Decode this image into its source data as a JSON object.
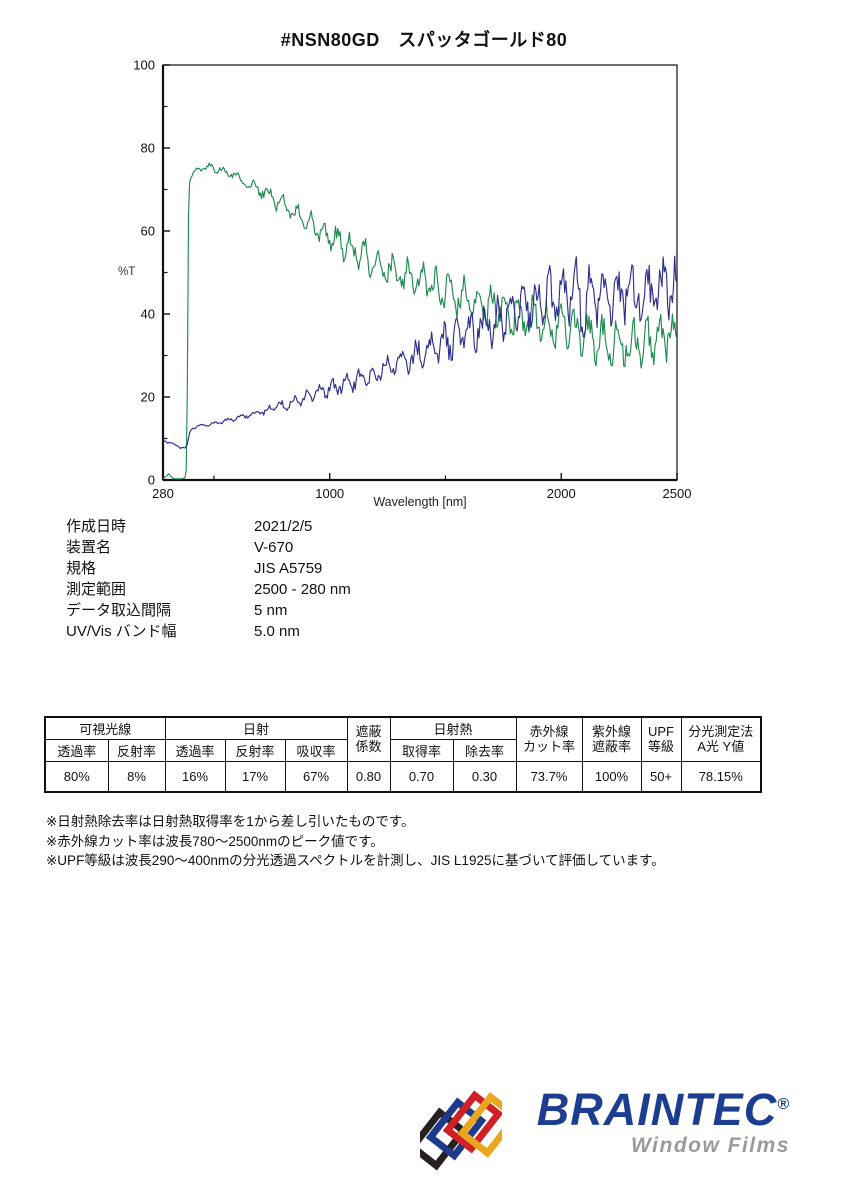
{
  "page": {
    "title": "#NSN80GD　スパッタゴールド80"
  },
  "chart_data": {
    "type": "line",
    "xlabel": "Wavelength [nm]",
    "ylabel": "%T",
    "xlim": [
      280,
      2500
    ],
    "ylim": [
      0,
      100
    ],
    "x_ticks_major": [
      280,
      1000,
      2000,
      2500
    ],
    "x_ticks_minor": [
      500,
      1500
    ],
    "y_ticks_major": [
      0,
      20,
      40,
      60,
      80,
      100
    ],
    "y_ticks_minor": [
      10,
      30,
      50,
      70,
      90
    ],
    "step_nm": 5,
    "grid": false,
    "legend": "none",
    "series": [
      {
        "name": "transmittance-spectrum",
        "color": "#1f8b50",
        "seed": 7,
        "trend": [
          [
            280,
            0.3
          ],
          [
            295,
            1.0
          ],
          [
            305,
            1.5
          ],
          [
            315,
            0.8
          ],
          [
            330,
            0.3
          ],
          [
            360,
            0.3
          ],
          [
            378,
            0.6
          ],
          [
            383,
            5
          ],
          [
            386,
            30
          ],
          [
            389,
            60
          ],
          [
            392,
            71
          ],
          [
            400,
            73
          ],
          [
            420,
            74.5
          ],
          [
            450,
            75.3
          ],
          [
            480,
            75.5
          ],
          [
            510,
            75
          ],
          [
            540,
            74.5
          ],
          [
            570,
            74
          ],
          [
            600,
            73
          ],
          [
            650,
            71.5
          ],
          [
            700,
            70
          ],
          [
            750,
            68
          ],
          [
            800,
            66
          ],
          [
            850,
            64
          ],
          [
            900,
            62
          ],
          [
            950,
            60
          ],
          [
            1000,
            58.5
          ],
          [
            1050,
            57
          ],
          [
            1100,
            55.5
          ],
          [
            1150,
            54
          ],
          [
            1200,
            52.5
          ],
          [
            1250,
            51
          ],
          [
            1300,
            50
          ],
          [
            1350,
            48.5
          ],
          [
            1400,
            47.5
          ],
          [
            1450,
            46.5
          ],
          [
            1500,
            45.5
          ],
          [
            1550,
            44.5
          ],
          [
            1600,
            43.5
          ],
          [
            1650,
            42.5
          ],
          [
            1700,
            41.5
          ],
          [
            1750,
            40.5
          ],
          [
            1800,
            39.5
          ],
          [
            1850,
            38.5
          ],
          [
            1900,
            38
          ],
          [
            1950,
            37
          ],
          [
            2000,
            36.5
          ],
          [
            2050,
            36
          ],
          [
            2100,
            35
          ],
          [
            2150,
            34.5
          ],
          [
            2200,
            34
          ],
          [
            2250,
            33.5
          ],
          [
            2300,
            33
          ],
          [
            2350,
            33
          ],
          [
            2400,
            33.5
          ],
          [
            2450,
            34
          ],
          [
            2500,
            34.5
          ]
        ],
        "noise_amp": [
          [
            280,
            0
          ],
          [
            380,
            0
          ],
          [
            395,
            0.3
          ],
          [
            450,
            0.9
          ],
          [
            550,
            1.0
          ],
          [
            650,
            1.5
          ],
          [
            750,
            2.2
          ],
          [
            850,
            3.0
          ],
          [
            950,
            3.5
          ],
          [
            1050,
            4.0
          ],
          [
            1150,
            4.3
          ],
          [
            1250,
            4.6
          ],
          [
            1350,
            5.0
          ],
          [
            1450,
            5.2
          ],
          [
            1600,
            5.5
          ],
          [
            1800,
            6.0
          ],
          [
            2000,
            6.0
          ],
          [
            2150,
            6.5
          ],
          [
            2300,
            6.0
          ],
          [
            2500,
            5.5
          ]
        ]
      },
      {
        "name": "reflectance-spectrum",
        "color": "#2f2f8d",
        "seed": 13,
        "trend": [
          [
            280,
            9.5
          ],
          [
            300,
            9.2
          ],
          [
            320,
            8.8
          ],
          [
            340,
            8.3
          ],
          [
            360,
            7.8
          ],
          [
            375,
            7.5
          ],
          [
            385,
            8.5
          ],
          [
            395,
            11.5
          ],
          [
            405,
            12.5
          ],
          [
            430,
            13
          ],
          [
            470,
            13.3
          ],
          [
            500,
            13.6
          ],
          [
            550,
            14.2
          ],
          [
            600,
            15
          ],
          [
            650,
            15.6
          ],
          [
            700,
            16.3
          ],
          [
            750,
            17.2
          ],
          [
            800,
            18
          ],
          [
            850,
            19
          ],
          [
            900,
            20
          ],
          [
            950,
            21
          ],
          [
            1000,
            22
          ],
          [
            1050,
            22.8
          ],
          [
            1100,
            23.8
          ],
          [
            1150,
            24.8
          ],
          [
            1200,
            25.8
          ],
          [
            1250,
            27
          ],
          [
            1300,
            28.2
          ],
          [
            1350,
            29.4
          ],
          [
            1400,
            30.6
          ],
          [
            1450,
            31.8
          ],
          [
            1500,
            33
          ],
          [
            1550,
            34.3
          ],
          [
            1600,
            35.6
          ],
          [
            1650,
            36.8
          ],
          [
            1700,
            38
          ],
          [
            1750,
            39.3
          ],
          [
            1800,
            40.5
          ],
          [
            1850,
            41.5
          ],
          [
            1900,
            42.5
          ],
          [
            1950,
            43.5
          ],
          [
            2000,
            44.3
          ],
          [
            2050,
            45
          ],
          [
            2100,
            45.3
          ],
          [
            2150,
            45.3
          ],
          [
            2200,
            45
          ],
          [
            2250,
            44.8
          ],
          [
            2300,
            44.8
          ],
          [
            2350,
            45
          ],
          [
            2400,
            45.3
          ],
          [
            2450,
            45.8
          ],
          [
            2500,
            46.5
          ]
        ],
        "noise_amp": [
          [
            280,
            0.3
          ],
          [
            400,
            0.35
          ],
          [
            500,
            0.45
          ],
          [
            600,
            0.6
          ],
          [
            700,
            0.9
          ],
          [
            800,
            1.4
          ],
          [
            900,
            1.9
          ],
          [
            1000,
            2.3
          ],
          [
            1100,
            2.7
          ],
          [
            1200,
            3.1
          ],
          [
            1300,
            3.6
          ],
          [
            1400,
            4.2
          ],
          [
            1500,
            4.8
          ],
          [
            1600,
            5.5
          ],
          [
            1700,
            6.2
          ],
          [
            1800,
            6.8
          ],
          [
            1900,
            7.4
          ],
          [
            2000,
            8.0
          ],
          [
            2065,
            13.0
          ],
          [
            2120,
            9.0
          ],
          [
            2200,
            7.5
          ],
          [
            2350,
            7.5
          ],
          [
            2500,
            7.5
          ]
        ]
      }
    ]
  },
  "metadata": {
    "rows": [
      {
        "label": "作成日時",
        "value": "2021/2/5"
      },
      {
        "label": "装置名",
        "value": "V-670"
      },
      {
        "label": "規格",
        "value": "JIS A5759"
      },
      {
        "label": "測定範囲",
        "value": "2500 - 280 nm"
      },
      {
        "label": "データ取込間隔",
        "value": "5 nm"
      },
      {
        "label": "UV/Vis バンド幅",
        "value": "5.0 nm"
      }
    ]
  },
  "table": {
    "groups": [
      {
        "label": "可視光線"
      },
      {
        "label": "日射"
      },
      {
        "line1": "遮蔽",
        "line2": "係数"
      },
      {
        "label": "日射熱"
      },
      {
        "line1": "赤外線",
        "line2": "カット率"
      },
      {
        "line1": "紫外線",
        "line2": "遮蔽率"
      },
      {
        "line1": "UPF",
        "line2": "等級"
      },
      {
        "line1": "分光測定法",
        "line2": "A光 Y値"
      }
    ],
    "subheaders": [
      "透過率",
      "反射率",
      "透過率",
      "反射率",
      "吸収率",
      "取得率",
      "除去率"
    ],
    "values": [
      "80%",
      "8%",
      "16%",
      "17%",
      "67%",
      "0.80",
      "0.70",
      "0.30",
      "73.7%",
      "100%",
      "50+",
      "78.15%"
    ]
  },
  "notes": [
    "※日射熱除去率は日射熱取得率を1から差し引いたものです。",
    "※赤外線カット率は波長780～2500nmのピーク値です。",
    "※UPF等級は波長290～400nmの分光透過スペクトルを計測し、JIS L1925に基づいて評価しています。"
  ],
  "logo": {
    "brand": "BRAINTEC",
    "reg": "®",
    "sub": "Window Films",
    "brand_color": "#1d3e90",
    "sub_color": "#9a9a9a",
    "mark_colors": [
      "#26211e",
      "#1e3a8c",
      "#d22027",
      "#eaa71e"
    ]
  }
}
